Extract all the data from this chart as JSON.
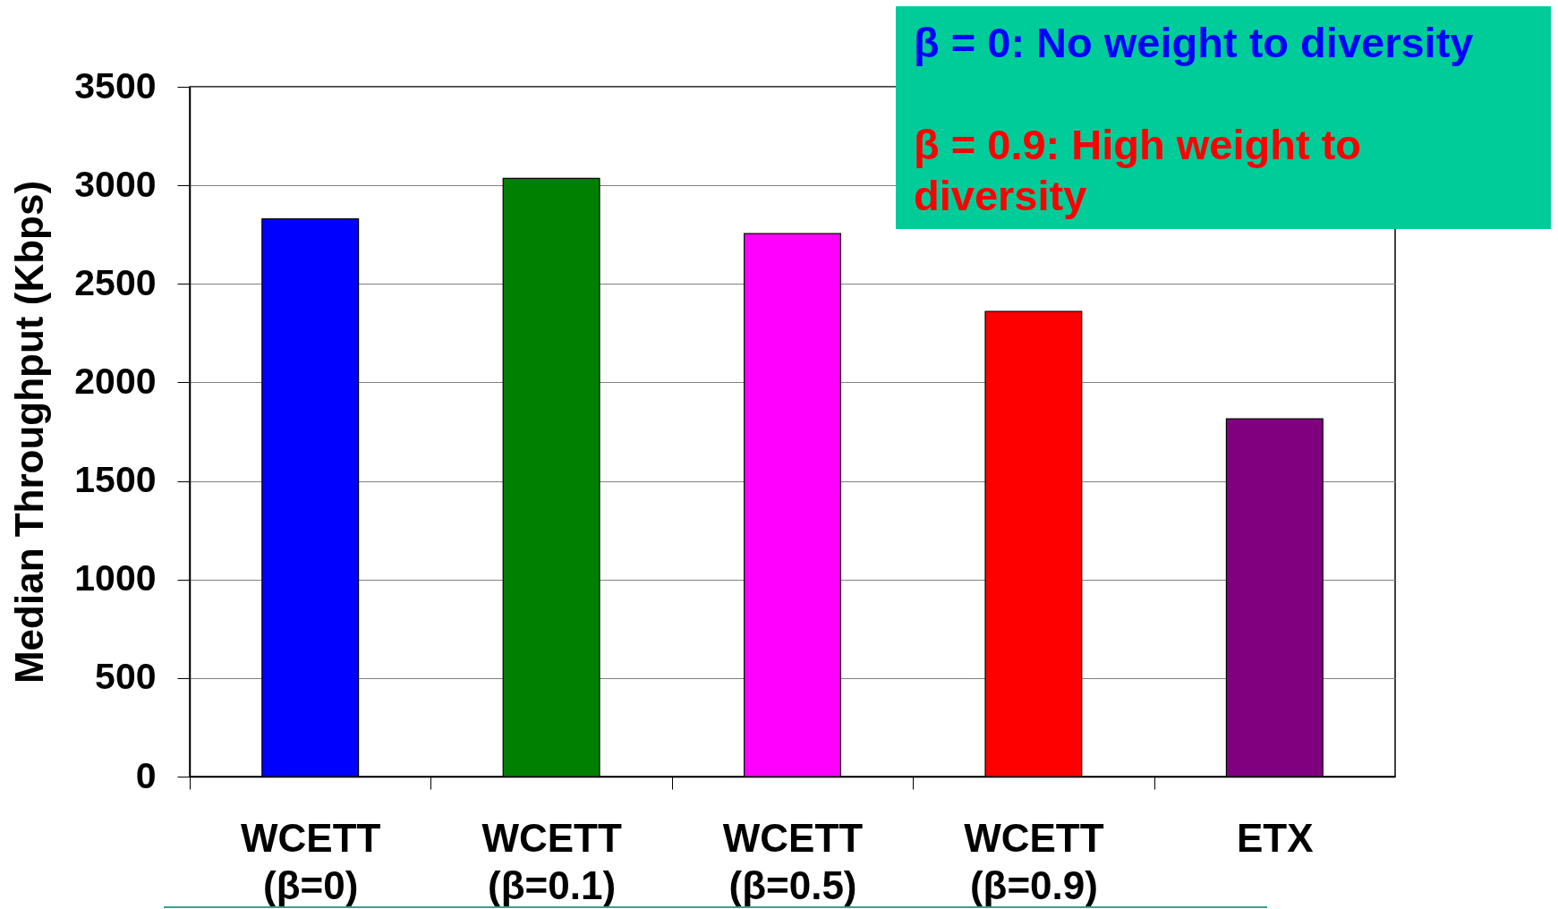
{
  "chart_data": {
    "type": "bar",
    "ylabel": "Median Throughput (Kbps)",
    "categories": [
      "WCETT (β=0)",
      "WCETT (β=0.1)",
      "WCETT (β=0.5)",
      "WCETT (β=0.9)",
      "ETX"
    ],
    "values": [
      2830,
      3035,
      2755,
      2360,
      1815
    ],
    "colors": [
      "#0000ff",
      "#008000",
      "#ff00ff",
      "#ff0000",
      "#800080"
    ],
    "ylim": [
      0,
      3500
    ],
    "yticks": [
      0,
      500,
      1000,
      1500,
      2000,
      2500,
      3000,
      3500
    ],
    "grid": "y",
    "annotations": [
      "β = 0: No weight to diversity",
      "β = 0.9: High weight to diversity"
    ]
  }
}
